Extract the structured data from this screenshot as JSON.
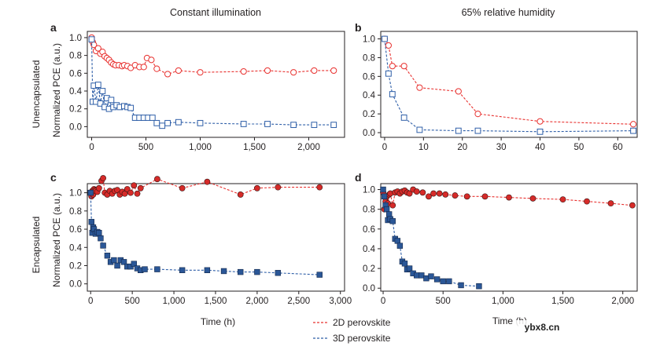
{
  "figure": {
    "column_titles": [
      "Constant illumination",
      "65% relative humidity"
    ],
    "row_titles": [
      "Unencapsulated",
      "Encapsulated"
    ],
    "ylabel": "Normalized PCE (a.u.)",
    "xlabel": "Time (h)",
    "watermark": "ybx8.cn",
    "legend": [
      {
        "label": "2D perovskite",
        "color": "#e8312f"
      },
      {
        "label": "3D perovskite",
        "color": "#2f5fa8"
      }
    ],
    "colors": {
      "red_line": "#e8312f",
      "red_fill": "#d62b29",
      "blue_line": "#2f5fa8",
      "blue_fill": "#2b5797"
    }
  },
  "chart_data": [
    {
      "panel": "a",
      "type": "scatter",
      "title": "Constant illumination",
      "xlabel": "",
      "ylabel": "Normalized PCE (a.u.)",
      "xlim": [
        -40,
        2330
      ],
      "ylim": [
        -0.12,
        1.07
      ],
      "xticks": [
        0,
        500,
        1000,
        1500,
        2000
      ],
      "xtick_labels": [
        "0",
        "500",
        "1,000",
        "1,500",
        "2,000"
      ],
      "yticks": [
        0,
        0.2,
        0.4,
        0.6,
        0.8,
        1.0
      ],
      "ytick_labels": [
        "0.0",
        "0.2",
        "0.4",
        "0.6",
        "0.8",
        "1.0"
      ],
      "marker": "open",
      "series": [
        {
          "name": "2D perovskite",
          "shape": "circle",
          "x": [
            0,
            10,
            20,
            40,
            60,
            80,
            100,
            120,
            140,
            160,
            180,
            200,
            220,
            250,
            280,
            300,
            330,
            360,
            400,
            440,
            480,
            510,
            550,
            600,
            700,
            800,
            1000,
            1400,
            1620,
            1860,
            2050,
            2230
          ],
          "y": [
            1.0,
            0.95,
            0.92,
            0.85,
            0.88,
            0.82,
            0.84,
            0.79,
            0.77,
            0.75,
            0.72,
            0.7,
            0.69,
            0.69,
            0.68,
            0.69,
            0.68,
            0.66,
            0.69,
            0.67,
            0.67,
            0.77,
            0.75,
            0.65,
            0.59,
            0.63,
            0.61,
            0.62,
            0.63,
            0.61,
            0.63,
            0.63
          ]
        },
        {
          "name": "3D perovskite",
          "shape": "square",
          "x": [
            0,
            10,
            20,
            40,
            60,
            80,
            100,
            120,
            140,
            160,
            180,
            200,
            230,
            260,
            300,
            330,
            360,
            400,
            440,
            480,
            520,
            560,
            600,
            650,
            700,
            800,
            1000,
            1400,
            1620,
            1860,
            2050,
            2230
          ],
          "y": [
            0.98,
            0.28,
            0.46,
            0.28,
            0.47,
            0.26,
            0.4,
            0.22,
            0.32,
            0.2,
            0.3,
            0.22,
            0.24,
            0.22,
            0.23,
            0.22,
            0.21,
            0.1,
            0.1,
            0.1,
            0.1,
            0.1,
            0.04,
            0.01,
            0.04,
            0.05,
            0.04,
            0.03,
            0.03,
            0.02,
            0.02,
            0.02
          ]
        }
      ]
    },
    {
      "panel": "b",
      "type": "scatter",
      "title": "65% relative humidity",
      "xlabel": "",
      "ylabel": "",
      "xlim": [
        -1,
        65
      ],
      "ylim": [
        -0.05,
        1.08
      ],
      "xticks": [
        0,
        10,
        20,
        30,
        40,
        50,
        60
      ],
      "xtick_labels": [
        "0",
        "10",
        "20",
        "30",
        "40",
        "50",
        "60"
      ],
      "yticks": [
        0,
        0.2,
        0.4,
        0.6,
        0.8,
        1.0
      ],
      "ytick_labels": [
        "0.0",
        "0.2",
        "0.4",
        "0.6",
        "0.8",
        "1.0"
      ],
      "marker": "open",
      "series": [
        {
          "name": "2D perovskite",
          "shape": "circle",
          "x": [
            0,
            1,
            2,
            5,
            9,
            19,
            24,
            40,
            64
          ],
          "y": [
            1.0,
            0.93,
            0.71,
            0.71,
            0.48,
            0.44,
            0.2,
            0.12,
            0.09
          ]
        },
        {
          "name": "3D perovskite",
          "shape": "square",
          "x": [
            0,
            1,
            2,
            5,
            9,
            19,
            24,
            40,
            64
          ],
          "y": [
            1.0,
            0.63,
            0.41,
            0.16,
            0.03,
            0.02,
            0.02,
            0.01,
            0.02
          ]
        }
      ]
    },
    {
      "panel": "c",
      "type": "scatter",
      "title": "",
      "xlabel": "Time (h)",
      "ylabel": "Normalized PCE (a.u.)",
      "xlim": [
        -40,
        3050
      ],
      "ylim": [
        -0.08,
        1.1
      ],
      "xticks": [
        0,
        500,
        1000,
        1500,
        2000,
        2500,
        3000
      ],
      "xtick_labels": [
        "0",
        "500",
        "1,000",
        "1,500",
        "2,000",
        "2,500",
        "3,000"
      ],
      "yticks": [
        0,
        0.2,
        0.4,
        0.6,
        0.8,
        1.0
      ],
      "ytick_labels": [
        "0.0",
        "0.2",
        "0.4",
        "0.6",
        "0.8",
        "1.0"
      ],
      "marker": "filled",
      "series": [
        {
          "name": "2D perovskite",
          "shape": "circle",
          "x": [
            0,
            10,
            20,
            30,
            40,
            50,
            60,
            80,
            100,
            130,
            150,
            170,
            200,
            230,
            260,
            290,
            320,
            350,
            380,
            410,
            440,
            480,
            520,
            560,
            600,
            800,
            1100,
            1400,
            1800,
            2000,
            2250,
            2750
          ],
          "y": [
            1.0,
            0.96,
            1.02,
            0.98,
            1.04,
            1.03,
            1.02,
            1.01,
            1.05,
            1.13,
            1.16,
            1.0,
            0.98,
            1.02,
            0.99,
            1.02,
            1.03,
            0.98,
            1.01,
            0.99,
            1.04,
            1.0,
            1.08,
            0.99,
            1.05,
            1.15,
            1.05,
            1.12,
            0.98,
            1.05,
            1.06,
            1.06
          ]
        },
        {
          "name": "3D perovskite",
          "shape": "square",
          "x": [
            0,
            10,
            20,
            30,
            40,
            60,
            80,
            100,
            120,
            150,
            200,
            240,
            280,
            320,
            360,
            400,
            440,
            480,
            520,
            560,
            600,
            650,
            800,
            1100,
            1400,
            1600,
            1800,
            2000,
            2250,
            2750
          ],
          "y": [
            1.0,
            0.68,
            0.56,
            0.62,
            0.6,
            0.55,
            0.57,
            0.56,
            0.5,
            0.42,
            0.31,
            0.24,
            0.26,
            0.2,
            0.26,
            0.24,
            0.19,
            0.19,
            0.22,
            0.17,
            0.15,
            0.16,
            0.16,
            0.15,
            0.15,
            0.14,
            0.13,
            0.13,
            0.12,
            0.1
          ]
        }
      ]
    },
    {
      "panel": "d",
      "type": "scatter",
      "title": "",
      "xlabel": "Time (h)",
      "ylabel": "",
      "xlim": [
        -20,
        2120
      ],
      "ylim": [
        -0.03,
        1.06
      ],
      "xticks": [
        0,
        500,
        1000,
        1500,
        2000
      ],
      "xtick_labels": [
        "0",
        "500",
        "1,000",
        "1,500",
        "2,000"
      ],
      "yticks": [
        0,
        0.2,
        0.4,
        0.6,
        0.8,
        1.0
      ],
      "ytick_labels": [
        "0.0",
        "0.2",
        "0.4",
        "0.6",
        "0.8",
        "1.0"
      ],
      "marker": "filled",
      "series": [
        {
          "name": "2D perovskite",
          "shape": "circle",
          "x": [
            0,
            10,
            20,
            30,
            40,
            50,
            60,
            80,
            100,
            120,
            140,
            160,
            180,
            200,
            220,
            250,
            280,
            330,
            380,
            420,
            470,
            520,
            600,
            700,
            850,
            1050,
            1250,
            1500,
            1700,
            1900,
            2080
          ],
          "y": [
            0.97,
            0.8,
            0.88,
            0.93,
            0.86,
            0.95,
            0.96,
            0.84,
            0.97,
            0.98,
            0.96,
            0.98,
            0.99,
            0.97,
            0.96,
            1.0,
            0.98,
            0.97,
            0.93,
            0.96,
            0.96,
            0.95,
            0.94,
            0.93,
            0.93,
            0.92,
            0.91,
            0.9,
            0.88,
            0.86,
            0.84
          ]
        },
        {
          "name": "3D perovskite",
          "shape": "square",
          "x": [
            0,
            10,
            20,
            30,
            40,
            50,
            60,
            80,
            100,
            120,
            140,
            160,
            180,
            200,
            220,
            250,
            280,
            320,
            360,
            400,
            450,
            500,
            550,
            650,
            800
          ],
          "y": [
            1.0,
            0.93,
            0.84,
            0.8,
            0.69,
            0.75,
            0.7,
            0.68,
            0.5,
            0.48,
            0.43,
            0.27,
            0.25,
            0.19,
            0.2,
            0.15,
            0.13,
            0.13,
            0.1,
            0.12,
            0.09,
            0.07,
            0.07,
            0.03,
            0.02
          ]
        }
      ]
    }
  ]
}
